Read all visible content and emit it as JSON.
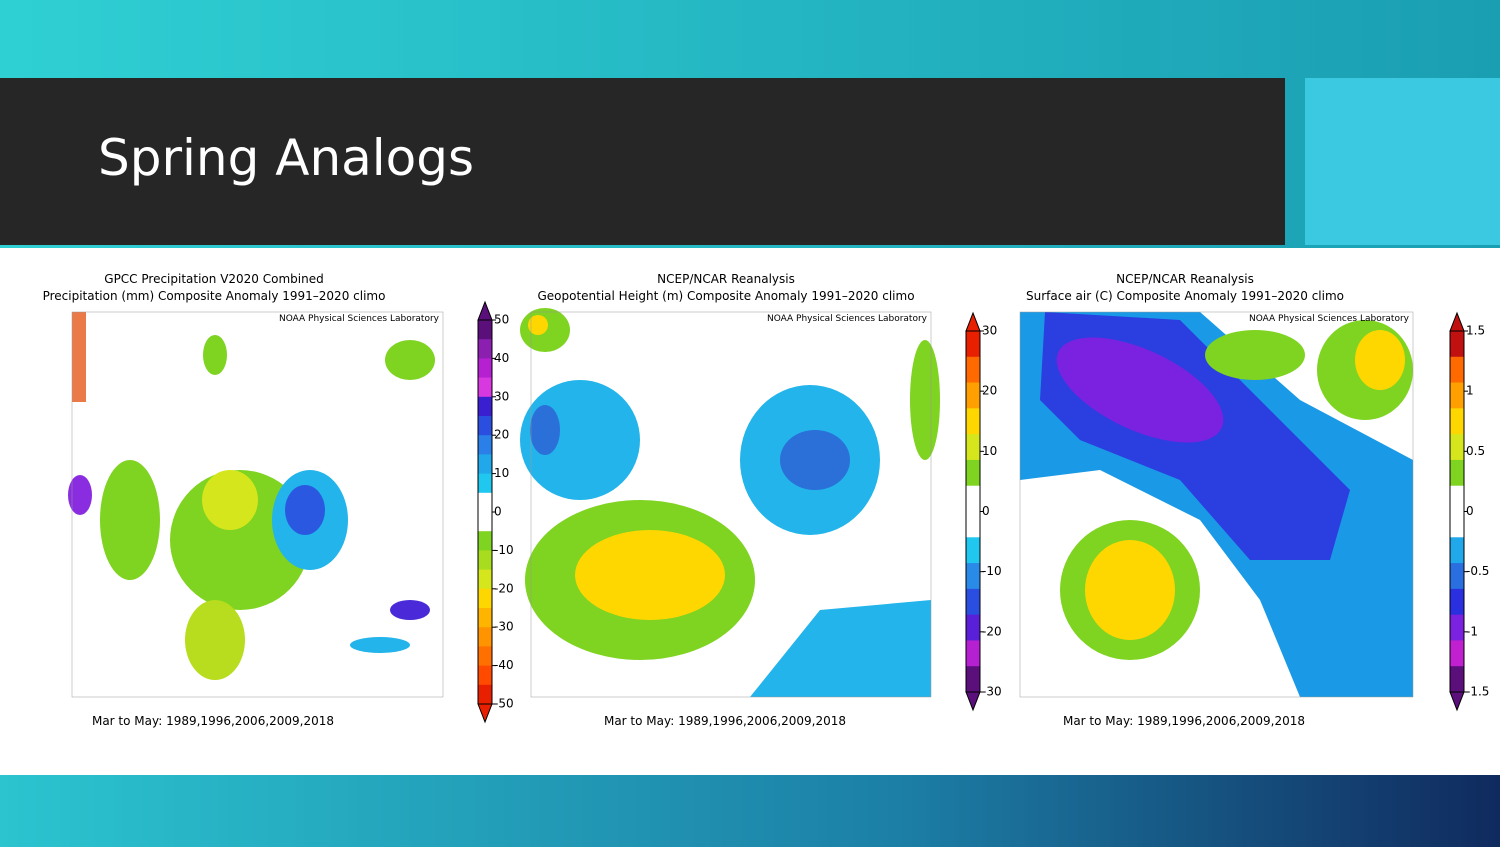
{
  "slide": {
    "title": "Spring Analogs",
    "panels": [
      {
        "title_lines": [
          "GPCC Precipitation V2020 Combined",
          "Precipitation (mm) Composite Anomaly 1991–2020 climo"
        ],
        "credit": "NOAA Physical Sciences Laboratory",
        "footer": "Mar to May: 1989,1996,2006,2009,2018",
        "colorbar_ticks": [
          50,
          40,
          30,
          20,
          10,
          0,
          -10,
          -20,
          -30,
          -40,
          -50
        ]
      },
      {
        "title_lines": [
          "NCEP/NCAR Reanalysis",
          "Geopotential Height (m) Composite Anomaly 1991–2020 climo"
        ],
        "credit": "NOAA Physical Sciences Laboratory",
        "footer": "Mar to May: 1989,1996,2006,2009,2018",
        "colorbar_ticks": [
          30,
          20,
          10,
          0,
          -10,
          -20,
          -30
        ]
      },
      {
        "title_lines": [
          "NCEP/NCAR Reanalysis",
          "Surface air (C) Composite Anomaly 1991–2020 climo"
        ],
        "credit": "NOAA Physical Sciences Laboratory",
        "footer": "Mar to May: 1989,1996,2006,2009,2018",
        "colorbar_ticks": [
          1.5,
          1,
          0.5,
          0,
          -0.5,
          -1,
          -1.5
        ]
      }
    ]
  }
}
